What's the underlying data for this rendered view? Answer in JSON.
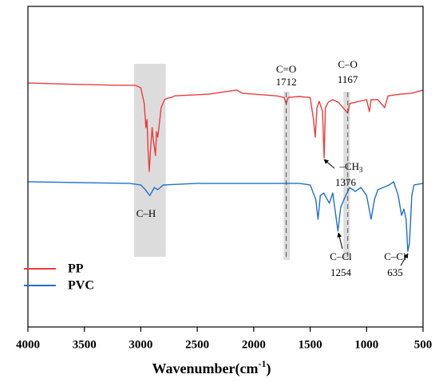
{
  "chart_data": {
    "type": "line",
    "xlabel": {
      "text": "Wavenumber(cm",
      "sup": "-1",
      "end": ")"
    },
    "xlim": [
      4000,
      500
    ],
    "xticks": [
      4000,
      3500,
      3000,
      2500,
      2000,
      1500,
      1000,
      500
    ],
    "ylim": [
      0,
      100
    ],
    "legend": "lower left",
    "bands": [
      [
        3060,
        2780
      ],
      [
        1735,
        1680
      ],
      [
        1205,
        1148
      ]
    ],
    "series": [
      {
        "name": "PP",
        "color": "#ee3b3b",
        "x": [
          4000,
          3600,
          3200,
          3050,
          3000,
          2970,
          2955,
          2945,
          2935,
          2925,
          2915,
          2900,
          2890,
          2870,
          2860,
          2850,
          2840,
          2820,
          2790,
          2760,
          2730,
          2700,
          2400,
          2150,
          2100,
          1800,
          1730,
          1712,
          1695,
          1600,
          1500,
          1470,
          1455,
          1440,
          1420,
          1390,
          1376,
          1365,
          1340,
          1300,
          1250,
          1167,
          1150,
          1100,
          1000,
          975,
          960,
          900,
          840,
          810,
          700,
          600,
          500
        ],
        "values": [
          76.1,
          75.7,
          75.4,
          75.4,
          74.6,
          69.7,
          62.2,
          64.7,
          54.7,
          48.5,
          54.7,
          62.2,
          58.5,
          53.5,
          60.9,
          59.2,
          62.2,
          68.4,
          70.9,
          71.4,
          71.6,
          72.1,
          72.6,
          73.9,
          72.9,
          72.1,
          71.6,
          69.7,
          71.6,
          71.9,
          71.6,
          64.7,
          59.2,
          68.4,
          70.4,
          67.2,
          52.7,
          68.4,
          70.1,
          70.9,
          70.1,
          66.7,
          69.7,
          70.1,
          70.9,
          67.2,
          70.9,
          70.9,
          68.4,
          72.1,
          72.6,
          72.9,
          73.9
        ]
      },
      {
        "name": "PVC",
        "color": "#1f6fd1",
        "x": [
          4000,
          3500,
          3100,
          3000,
          2960,
          2920,
          2900,
          2880,
          2850,
          2800,
          2500,
          2000,
          1600,
          1500,
          1450,
          1430,
          1410,
          1380,
          1330,
          1300,
          1254,
          1230,
          1200,
          1150,
          1100,
          1050,
          1000,
          960,
          930,
          900,
          800,
          760,
          720,
          690,
          670,
          650,
          635,
          620,
          600,
          580,
          500
        ],
        "values": [
          45.3,
          45.0,
          44.8,
          44.3,
          42.8,
          41.0,
          42.3,
          43.5,
          42.8,
          44.3,
          44.8,
          44.8,
          44.8,
          44.3,
          39.8,
          33.6,
          41.0,
          41.8,
          38.6,
          41.8,
          29.9,
          37.3,
          39.8,
          43.5,
          42.3,
          43.5,
          41.0,
          33.6,
          39.8,
          42.8,
          44.3,
          45.3,
          41.0,
          34.8,
          36.8,
          33.6,
          23.6,
          26.1,
          41.0,
          44.3,
          44.8
        ]
      }
    ],
    "annotations": [
      {
        "label": "C=O",
        "x": 1712
      },
      {
        "label": "C–O",
        "x": 1167
      },
      {
        "label": "–CH",
        "sub": "3",
        "x": 1376
      },
      {
        "label": "C–Cl",
        "x": 1254
      },
      {
        "label": "C–Cl",
        "x": 635
      },
      {
        "label": "C–H"
      }
    ]
  }
}
